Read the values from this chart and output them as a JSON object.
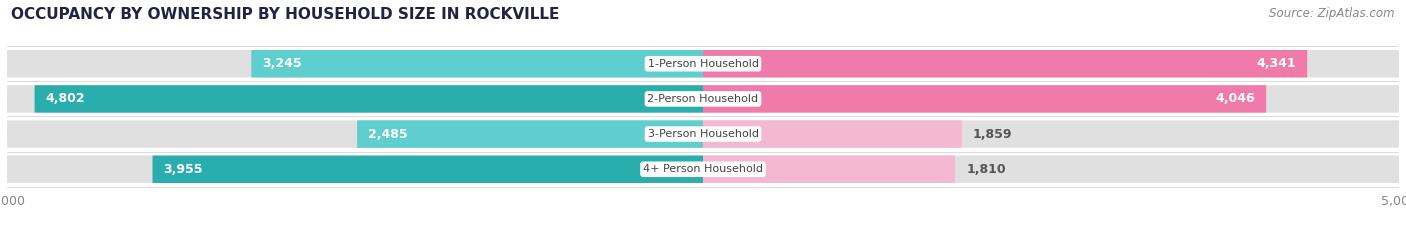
{
  "title": "OCCUPANCY BY OWNERSHIP BY HOUSEHOLD SIZE IN ROCKVILLE",
  "source": "Source: ZipAtlas.com",
  "categories": [
    "1-Person Household",
    "2-Person Household",
    "3-Person Household",
    "4+ Person Household"
  ],
  "owner_values": [
    3245,
    4802,
    2485,
    3955
  ],
  "renter_values": [
    4341,
    4046,
    1859,
    1810
  ],
  "max_value": 5000,
  "owner_colors": [
    "#5ecece",
    "#2aadad",
    "#5ecece",
    "#2aadad"
  ],
  "renter_colors": [
    "#f07aaa",
    "#f07aaa",
    "#f4b8d0",
    "#f4b8d0"
  ],
  "bar_bg_color": "#e0e0e0",
  "bar_height": 0.78,
  "title_fontsize": 11,
  "source_fontsize": 8.5,
  "bar_label_fontsize": 9,
  "category_fontsize": 8,
  "axis_label_fontsize": 9,
  "legend_fontsize": 9,
  "background_color": "#ffffff",
  "title_color": "#222244",
  "source_color": "#888888",
  "axis_tick_color": "#888888"
}
